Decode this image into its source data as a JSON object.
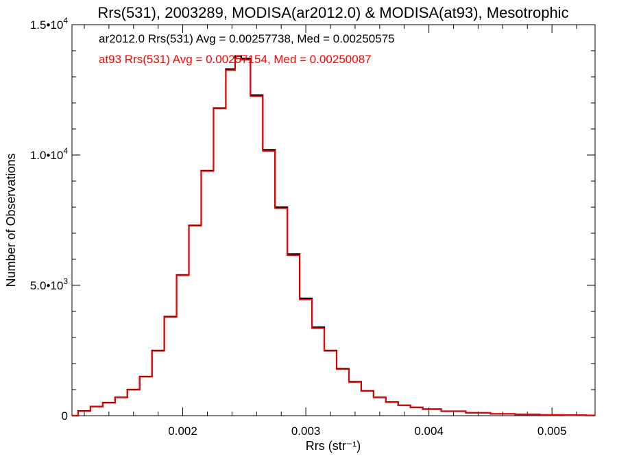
{
  "chart_data": {
    "type": "line",
    "title": "Rrs(531), 2003289, MODISA(ar2012.0) & MODISA(at93), Mesotrophic",
    "xlabel": "Rrs (str⁻¹)",
    "ylabel": "Number of Observations",
    "xlim": [
      0.0011,
      0.00535
    ],
    "ylim": [
      0,
      15000
    ],
    "x_ticks": [
      {
        "value": 0.002,
        "label": "0.002"
      },
      {
        "value": 0.003,
        "label": "0.003"
      },
      {
        "value": 0.004,
        "label": "0.004"
      },
      {
        "value": 0.005,
        "label": "0.005"
      }
    ],
    "y_ticks": [
      {
        "value": 0,
        "mantissa": "0",
        "exponent": ""
      },
      {
        "value": 5000,
        "mantissa": "5.0•10",
        "exponent": "3"
      },
      {
        "value": 10000,
        "mantissa": "1.0•10",
        "exponent": "4"
      },
      {
        "value": 15000,
        "mantissa": "1.5•10",
        "exponent": "4"
      }
    ],
    "legend": [
      {
        "text": "ar2012.0 Rrs(531) Avg = 0.00257738, Med = 0.00250575",
        "color": "#000000"
      },
      {
        "text": "at93 Rrs(531) Avg = 0.00257154, Med = 0.00250087",
        "color": "#ff0000"
      }
    ],
    "legend_placement": "top-left",
    "series": [
      {
        "color": "#000000",
        "x": [
          0.0011,
          0.0012,
          0.0013,
          0.0014,
          0.0015,
          0.0016,
          0.0017,
          0.0018,
          0.0019,
          0.002,
          0.0021,
          0.0022,
          0.0023,
          0.0024,
          0.00245,
          0.0025,
          0.0026,
          0.0027,
          0.0028,
          0.0029,
          0.003,
          0.0031,
          0.0032,
          0.0033,
          0.0034,
          0.0035,
          0.0036,
          0.0037,
          0.0038,
          0.0039,
          0.004,
          0.0042,
          0.0044,
          0.0046,
          0.0048,
          0.005,
          0.0052,
          0.00535
        ],
        "values": [
          0,
          180,
          350,
          500,
          700,
          1000,
          1500,
          2500,
          3800,
          5400,
          7300,
          9400,
          11800,
          13300,
          13800,
          13700,
          12300,
          10200,
          8000,
          6200,
          4500,
          3400,
          2500,
          1800,
          1300,
          950,
          700,
          520,
          400,
          320,
          250,
          170,
          110,
          70,
          50,
          30,
          20,
          10
        ]
      },
      {
        "color": "#ff0000",
        "x": [
          0.0011,
          0.0012,
          0.0013,
          0.0014,
          0.0015,
          0.0016,
          0.0017,
          0.0018,
          0.0019,
          0.002,
          0.0021,
          0.0022,
          0.0023,
          0.0024,
          0.00245,
          0.0025,
          0.0026,
          0.0027,
          0.0028,
          0.0029,
          0.003,
          0.0031,
          0.0032,
          0.0033,
          0.0034,
          0.0035,
          0.0036,
          0.0037,
          0.0038,
          0.0039,
          0.004,
          0.0042,
          0.0044,
          0.0046,
          0.0048,
          0.005,
          0.0052,
          0.00535
        ],
        "values": [
          0,
          170,
          340,
          490,
          690,
          990,
          1490,
          2480,
          3780,
          5380,
          7280,
          9380,
          11780,
          13250,
          13700,
          13650,
          12250,
          10150,
          7950,
          6150,
          4450,
          3350,
          2480,
          1780,
          1280,
          940,
          690,
          510,
          390,
          310,
          240,
          165,
          105,
          68,
          48,
          28,
          18,
          8
        ]
      }
    ]
  }
}
